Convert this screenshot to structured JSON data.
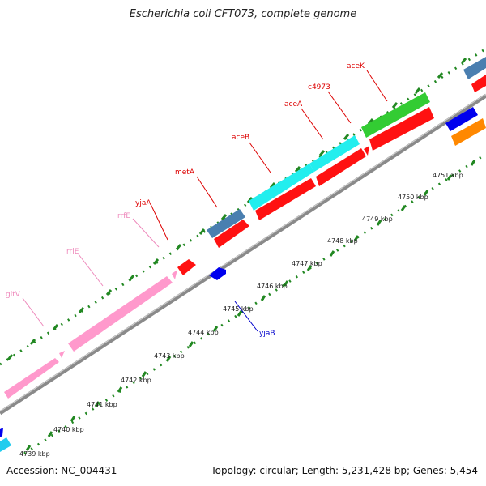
{
  "title": "Escherichia coli CFT073, complete genome",
  "footer": {
    "accession": "Accession: NC_004431",
    "summary": "Topology: circular; Length: 5,231,428 bp; Genes: 5,454"
  },
  "ticks": [
    "4739 kbp",
    "4740 kbp",
    "4741 kbp",
    "4742 kbp",
    "4743 kbp",
    "4744 kbp",
    "4745 kbp",
    "4746 kbp",
    "4747 kbp",
    "4748 kbp",
    "4749 kbp",
    "4750 kbp",
    "4751 kbp"
  ],
  "gene_labels": [
    {
      "name": "gltV",
      "color": "#ee88bb"
    },
    {
      "name": "rrlE",
      "color": "#ee88bb"
    },
    {
      "name": "rrfE",
      "color": "#ee88bb"
    },
    {
      "name": "yjaA",
      "color": "#dd0000"
    },
    {
      "name": "metA",
      "color": "#dd0000"
    },
    {
      "name": "aceB",
      "color": "#dd0000"
    },
    {
      "name": "aceA",
      "color": "#dd0000"
    },
    {
      "name": "c4973",
      "color": "#dd0000"
    },
    {
      "name": "aceK",
      "color": "#dd0000"
    },
    {
      "name": "yjaB",
      "color": "#0000cc"
    }
  ],
  "colors": {
    "rRNA": "#ff99cc",
    "cds_red": "#ff1111",
    "cds_blue": "#0000ee",
    "cyan": "#22eeee",
    "green": "#33cc33",
    "steel": "#4477aa",
    "orange": "#ff8800",
    "dotted": "#228822",
    "backbone": "#888888"
  }
}
